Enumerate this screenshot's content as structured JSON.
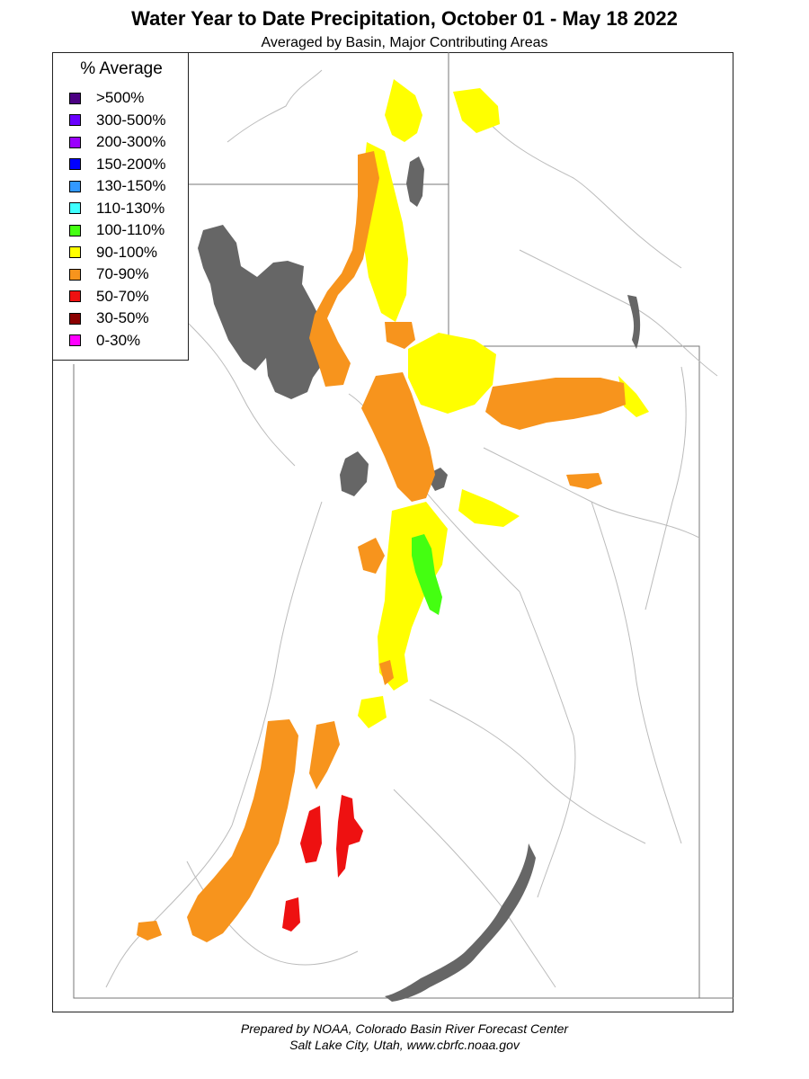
{
  "title": "Water Year to Date Precipitation, October 01  - May 18 2022",
  "subtitle": "Averaged by Basin, Major Contributing Areas",
  "legend": {
    "title": "% Average",
    "items": [
      {
        "label": ">500%",
        "color": "#4b0082"
      },
      {
        "label": "300-500%",
        "color": "#6a00ff"
      },
      {
        "label": "200-300%",
        "color": "#9b00ff"
      },
      {
        "label": "150-200%",
        "color": "#0000ff"
      },
      {
        "label": "130-150%",
        "color": "#3399ff"
      },
      {
        "label": "110-130%",
        "color": "#40ffff"
      },
      {
        "label": "100-110%",
        "color": "#44ff11"
      },
      {
        "label": "90-100%",
        "color": "#ffff00"
      },
      {
        "label": "70-90%",
        "color": "#f7941d"
      },
      {
        "label": "50-70%",
        "color": "#ee1111"
      },
      {
        "label": "30-50%",
        "color": "#8b0000"
      },
      {
        "label": "0-30%",
        "color": "#ff00ff"
      }
    ]
  },
  "map": {
    "lake_color": "#666666",
    "boundary_color": "#777777",
    "river_color": "#bbbbbb"
  },
  "footer": {
    "line1": "Prepared by NOAA, Colorado Basin River Forecast Center",
    "line2": "Salt Lake City, Utah, www.cbrfc.noaa.gov"
  }
}
